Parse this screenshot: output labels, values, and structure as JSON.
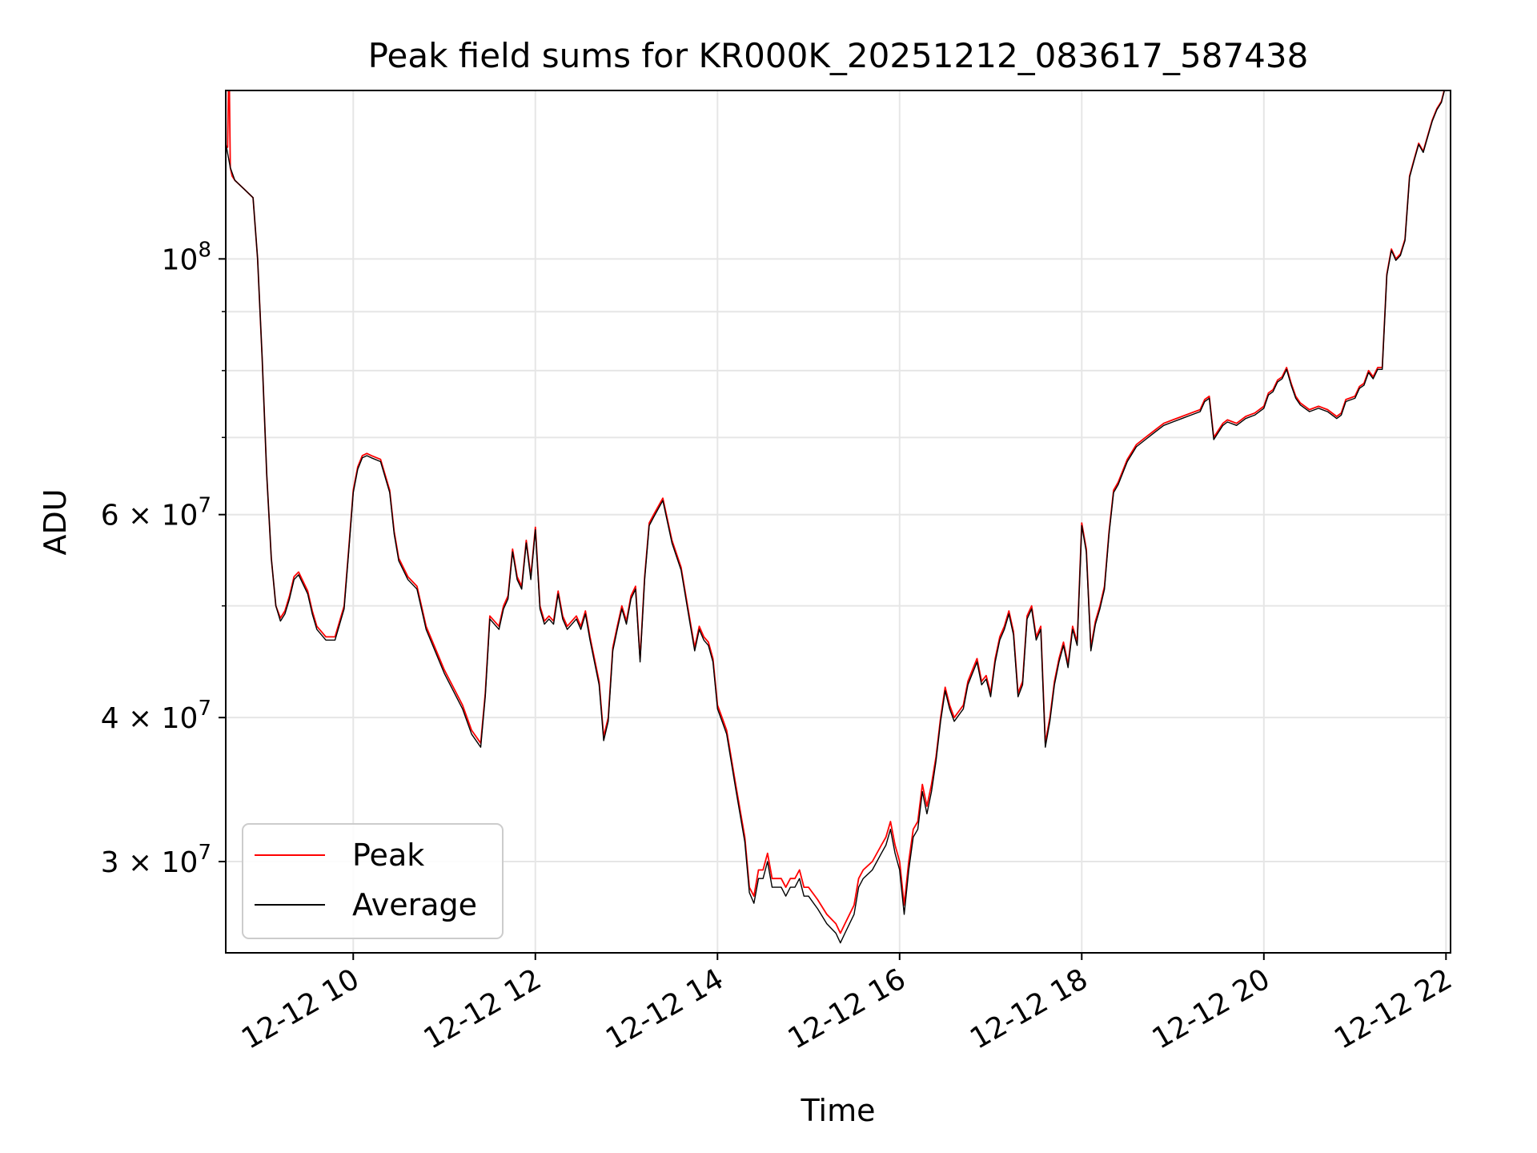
{
  "chart_data": {
    "type": "line",
    "title": "Peak field sums for KR000K_20251212_083617_587438",
    "xlabel": "Time",
    "ylabel": "ADU",
    "yscale": "log",
    "xlim": [
      8.6,
      22.05
    ],
    "ylim": [
      25000000,
      140000000
    ],
    "grid": true,
    "legend_position": "lower-left",
    "x_ticks": [
      {
        "value": 10,
        "label": "12-12 10"
      },
      {
        "value": 12,
        "label": "12-12 12"
      },
      {
        "value": 14,
        "label": "12-12 14"
      },
      {
        "value": 16,
        "label": "12-12 16"
      },
      {
        "value": 18,
        "label": "12-12 18"
      },
      {
        "value": 20,
        "label": "12-12 20"
      },
      {
        "value": 22,
        "label": "12-12 22"
      }
    ],
    "y_ticks": [
      {
        "value": 100000000,
        "base": "10",
        "exp": "8"
      },
      {
        "value": 60000000,
        "base": "6 × 10",
        "exp": "7"
      },
      {
        "value": 40000000,
        "base": "4 × 10",
        "exp": "7"
      },
      {
        "value": 30000000,
        "base": "3 × 10",
        "exp": "7"
      }
    ],
    "y_minor_ticks": [
      50000000,
      70000000,
      80000000,
      90000000
    ],
    "series": [
      {
        "name": "Peak",
        "color": "#ff0000",
        "x": [
          8.6,
          8.62,
          8.63,
          8.64,
          8.65,
          8.66,
          8.67,
          8.7,
          8.8,
          8.9,
          8.95,
          9.0,
          9.05,
          9.1,
          9.15,
          9.2,
          9.25,
          9.3,
          9.35,
          9.4,
          9.5,
          9.55,
          9.6,
          9.65,
          9.7,
          9.8,
          9.9,
          9.95,
          10.0,
          10.05,
          10.1,
          10.15,
          10.2,
          10.3,
          10.4,
          10.45,
          10.5,
          10.6,
          10.7,
          10.8,
          11.0,
          11.2,
          11.3,
          11.4,
          11.45,
          11.5,
          11.6,
          11.65,
          11.7,
          11.75,
          11.8,
          11.85,
          11.9,
          11.95,
          12.0,
          12.05,
          12.1,
          12.15,
          12.2,
          12.25,
          12.3,
          12.35,
          12.4,
          12.45,
          12.5,
          12.55,
          12.6,
          12.7,
          12.75,
          12.8,
          12.85,
          12.9,
          12.95,
          13.0,
          13.05,
          13.1,
          13.15,
          13.2,
          13.25,
          13.3,
          13.35,
          13.4,
          13.5,
          13.6,
          13.7,
          13.75,
          13.8,
          13.85,
          13.9,
          13.95,
          14.0,
          14.05,
          14.1,
          14.2,
          14.3,
          14.35,
          14.4,
          14.45,
          14.5,
          14.55,
          14.6,
          14.7,
          14.75,
          14.8,
          14.85,
          14.9,
          14.95,
          15.0,
          15.1,
          15.2,
          15.3,
          15.35,
          15.4,
          15.5,
          15.55,
          15.6,
          15.7,
          15.8,
          15.85,
          15.9,
          15.95,
          16.0,
          16.05,
          16.1,
          16.15,
          16.2,
          16.25,
          16.3,
          16.35,
          16.4,
          16.45,
          16.5,
          16.55,
          16.6,
          16.7,
          16.75,
          16.8,
          16.85,
          16.9,
          16.95,
          17.0,
          17.05,
          17.1,
          17.15,
          17.2,
          17.25,
          17.3,
          17.35,
          17.4,
          17.45,
          17.5,
          17.55,
          17.6,
          17.65,
          17.7,
          17.75,
          17.8,
          17.85,
          17.9,
          17.95,
          18.0,
          18.05,
          18.1,
          18.15,
          18.2,
          18.25,
          18.3,
          18.35,
          18.4,
          18.5,
          18.6,
          18.7,
          18.8,
          18.9,
          19.0,
          19.1,
          19.2,
          19.3,
          19.35,
          19.4,
          19.45,
          19.5,
          19.55,
          19.6,
          19.7,
          19.8,
          19.9,
          20.0,
          20.05,
          20.1,
          20.15,
          20.2,
          20.25,
          20.3,
          20.35,
          20.4,
          20.5,
          20.6,
          20.7,
          20.8,
          20.85,
          20.9,
          21.0,
          21.05,
          21.1,
          21.15,
          21.2,
          21.25,
          21.3,
          21.35,
          21.4,
          21.45,
          21.5,
          21.55,
          21.6,
          21.65,
          21.7,
          21.75,
          21.8,
          21.85,
          21.9,
          21.95,
          22.0,
          22.03
        ],
        "values": [
          125000000,
          125000000,
          140000000,
          140000000,
          120000000,
          119000000,
          118000000,
          117000000,
          115000000,
          113000000,
          100000000,
          82000000,
          65000000,
          55000000,
          50000000,
          48800000,
          49500000,
          51000000,
          53000000,
          53500000,
          51500000,
          49500000,
          48000000,
          47500000,
          47000000,
          47000000,
          50000000,
          56000000,
          63000000,
          66000000,
          67500000,
          67800000,
          67500000,
          67000000,
          63000000,
          58000000,
          55000000,
          53000000,
          52000000,
          48000000,
          44000000,
          41000000,
          39000000,
          38000000,
          42000000,
          49000000,
          48000000,
          50000000,
          51000000,
          56000000,
          53000000,
          52000000,
          57000000,
          53000000,
          58500000,
          50000000,
          48500000,
          49000000,
          48500000,
          51500000,
          49000000,
          48000000,
          48500000,
          49000000,
          48000000,
          49500000,
          47000000,
          43000000,
          38500000,
          40000000,
          46000000,
          48000000,
          50000000,
          48500000,
          51000000,
          52000000,
          45000000,
          53000000,
          59000000,
          60000000,
          61000000,
          62000000,
          57000000,
          54000000,
          48500000,
          46000000,
          48000000,
          47000000,
          46500000,
          45000000,
          41000000,
          40000000,
          39000000,
          35000000,
          31500000,
          28500000,
          28000000,
          29500000,
          29500000,
          30500000,
          29000000,
          29000000,
          28500000,
          29000000,
          29000000,
          29500000,
          28500000,
          28500000,
          27800000,
          27000000,
          26500000,
          26000000,
          26500000,
          27500000,
          29000000,
          29500000,
          30000000,
          31000000,
          31500000,
          32500000,
          31000000,
          30000000,
          27500000,
          30000000,
          32000000,
          32500000,
          35000000,
          33500000,
          35000000,
          37000000,
          40000000,
          42500000,
          41000000,
          40000000,
          41000000,
          43000000,
          44000000,
          45000000,
          43000000,
          43500000,
          42000000,
          45000000,
          47000000,
          48000000,
          49500000,
          47500000,
          42000000,
          43000000,
          49000000,
          50000000,
          47000000,
          48000000,
          38000000,
          40000000,
          43000000,
          45000000,
          46500000,
          44500000,
          48000000,
          46500000,
          59000000,
          56000000,
          46000000,
          48500000,
          50000000,
          52000000,
          58000000,
          63000000,
          64000000,
          67000000,
          69000000,
          70000000,
          71000000,
          72000000,
          72500000,
          73000000,
          73500000,
          74000000,
          75500000,
          76000000,
          70000000,
          71000000,
          72000000,
          72500000,
          72000000,
          73000000,
          73500000,
          74500000,
          76500000,
          77000000,
          78500000,
          79000000,
          80500000,
          78000000,
          76000000,
          75000000,
          74000000,
          74500000,
          74000000,
          73000000,
          73500000,
          75500000,
          76000000,
          77500000,
          78000000,
          80000000,
          79000000,
          80500000,
          80500000,
          97000000,
          102000000,
          100000000,
          101000000,
          104000000,
          118000000,
          122000000,
          126000000,
          124000000,
          128000000,
          132000000,
          135000000,
          137000000,
          142000000,
          145000000
        ]
      },
      {
        "name": "Average",
        "color": "#000000",
        "x": [
          8.6,
          8.65,
          8.7,
          8.8,
          8.9,
          8.95,
          9.0,
          9.05,
          9.1,
          9.15,
          9.2,
          9.25,
          9.3,
          9.35,
          9.4,
          9.5,
          9.55,
          9.6,
          9.65,
          9.7,
          9.8,
          9.9,
          9.95,
          10.0,
          10.05,
          10.1,
          10.15,
          10.2,
          10.3,
          10.4,
          10.45,
          10.5,
          10.6,
          10.7,
          10.8,
          11.0,
          11.2,
          11.3,
          11.4,
          11.45,
          11.5,
          11.6,
          11.65,
          11.7,
          11.75,
          11.8,
          11.85,
          11.9,
          11.95,
          12.0,
          12.05,
          12.1,
          12.15,
          12.2,
          12.25,
          12.3,
          12.35,
          12.4,
          12.45,
          12.5,
          12.55,
          12.6,
          12.7,
          12.75,
          12.8,
          12.85,
          12.9,
          12.95,
          13.0,
          13.05,
          13.1,
          13.15,
          13.2,
          13.25,
          13.3,
          13.35,
          13.4,
          13.5,
          13.6,
          13.7,
          13.75,
          13.8,
          13.85,
          13.9,
          13.95,
          14.0,
          14.05,
          14.1,
          14.2,
          14.3,
          14.35,
          14.4,
          14.45,
          14.5,
          14.55,
          14.6,
          14.7,
          14.75,
          14.8,
          14.85,
          14.9,
          14.95,
          15.0,
          15.1,
          15.2,
          15.3,
          15.35,
          15.4,
          15.5,
          15.55,
          15.6,
          15.7,
          15.8,
          15.85,
          15.9,
          15.95,
          16.0,
          16.05,
          16.1,
          16.15,
          16.2,
          16.25,
          16.3,
          16.35,
          16.4,
          16.45,
          16.5,
          16.55,
          16.6,
          16.7,
          16.75,
          16.8,
          16.85,
          16.9,
          16.95,
          17.0,
          17.05,
          17.1,
          17.15,
          17.2,
          17.25,
          17.3,
          17.35,
          17.4,
          17.45,
          17.5,
          17.55,
          17.6,
          17.65,
          17.7,
          17.75,
          17.8,
          17.85,
          17.9,
          17.95,
          18.0,
          18.05,
          18.1,
          18.15,
          18.2,
          18.25,
          18.3,
          18.35,
          18.4,
          18.5,
          18.6,
          18.7,
          18.8,
          18.9,
          19.0,
          19.1,
          19.2,
          19.3,
          19.35,
          19.4,
          19.45,
          19.5,
          19.55,
          19.6,
          19.7,
          19.8,
          19.9,
          20.0,
          20.05,
          20.1,
          20.15,
          20.2,
          20.25,
          20.3,
          20.35,
          20.4,
          20.5,
          20.6,
          20.7,
          20.8,
          20.85,
          20.9,
          21.0,
          21.05,
          21.1,
          21.15,
          21.2,
          21.25,
          21.3,
          21.35,
          21.4,
          21.45,
          21.5,
          21.55,
          21.6,
          21.65,
          21.7,
          21.75,
          21.8,
          21.85,
          21.9,
          21.95,
          22.0,
          22.03
        ],
        "values": [
          126000000,
          120000000,
          117000000,
          115000000,
          113000000,
          100000000,
          82000000,
          65000000,
          55000000,
          50000000,
          48500000,
          49200000,
          50700000,
          52700000,
          53200000,
          51200000,
          49200000,
          47700000,
          47200000,
          46700000,
          46700000,
          49700000,
          55700000,
          62700000,
          65700000,
          67200000,
          67500000,
          67200000,
          66700000,
          62700000,
          57700000,
          54700000,
          52700000,
          51700000,
          47700000,
          43700000,
          40700000,
          38700000,
          37700000,
          41700000,
          48700000,
          47700000,
          49700000,
          50700000,
          55700000,
          52700000,
          51700000,
          56700000,
          52700000,
          58200000,
          49700000,
          48200000,
          48700000,
          48200000,
          51200000,
          48700000,
          47700000,
          48200000,
          48700000,
          47700000,
          49200000,
          46700000,
          42700000,
          38200000,
          39700000,
          45700000,
          47700000,
          49700000,
          48200000,
          50700000,
          51700000,
          44700000,
          52700000,
          58700000,
          59700000,
          60700000,
          61700000,
          56700000,
          53700000,
          48200000,
          45700000,
          47700000,
          46700000,
          46200000,
          44700000,
          40700000,
          39700000,
          38700000,
          34700000,
          31200000,
          28200000,
          27600000,
          29000000,
          29000000,
          30000000,
          28500000,
          28500000,
          28000000,
          28500000,
          28500000,
          29000000,
          28000000,
          28000000,
          27300000,
          26500000,
          26000000,
          25500000,
          26000000,
          27000000,
          28500000,
          29000000,
          29500000,
          30500000,
          31000000,
          32000000,
          30500000,
          29500000,
          27000000,
          29500000,
          31500000,
          32000000,
          34500000,
          33000000,
          34500000,
          36700000,
          39700000,
          42200000,
          40700000,
          39700000,
          40700000,
          42700000,
          43700000,
          44700000,
          42700000,
          43200000,
          41700000,
          44700000,
          46700000,
          47700000,
          49200000,
          47200000,
          41700000,
          42700000,
          48700000,
          49700000,
          46700000,
          47700000,
          37700000,
          39700000,
          42700000,
          44700000,
          46200000,
          44200000,
          47700000,
          46200000,
          58700000,
          55700000,
          45700000,
          48200000,
          49700000,
          51700000,
          57700000,
          62700000,
          63700000,
          66700000,
          68700000,
          69700000,
          70700000,
          71700000,
          72200000,
          72700000,
          73200000,
          73700000,
          75200000,
          75700000,
          69700000,
          70700000,
          71700000,
          72200000,
          71700000,
          72700000,
          73200000,
          74200000,
          76200000,
          76700000,
          78200000,
          78700000,
          80200000,
          77700000,
          75700000,
          74700000,
          73700000,
          74200000,
          73700000,
          72700000,
          73200000,
          75200000,
          75700000,
          77200000,
          77700000,
          79700000,
          78700000,
          80200000,
          80200000,
          96700000,
          101700000,
          99700000,
          100700000,
          103700000,
          117700000,
          121700000,
          125700000,
          123700000,
          127700000,
          131700000,
          134700000,
          136700000,
          141700000,
          144700000
        ]
      }
    ]
  }
}
